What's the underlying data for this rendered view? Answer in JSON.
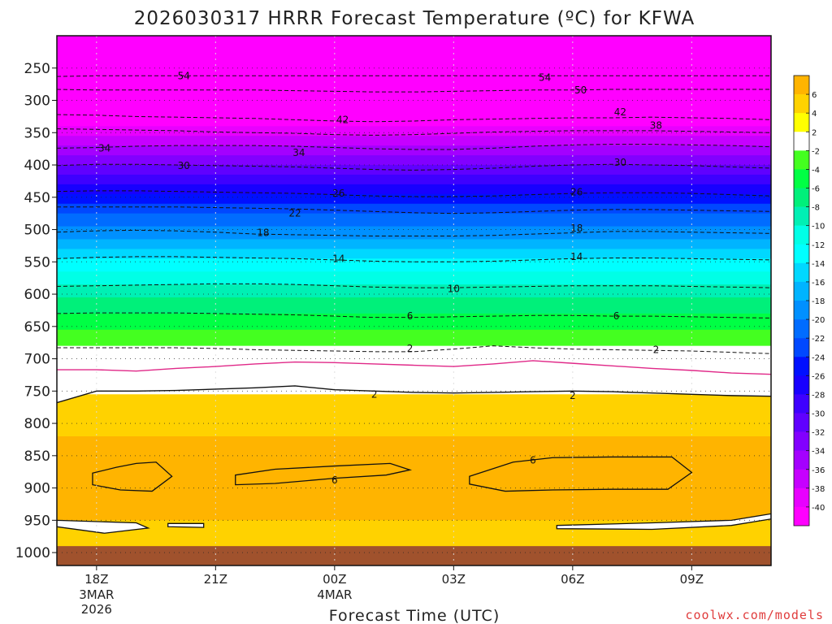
{
  "chart_data": {
    "type": "heatmap",
    "title": "2026030317 HRRR Forecast Temperature (ºC) for KFWA",
    "xlabel": "Forecast Time (UTC)",
    "ylabel": "",
    "credit": "coolwx.com/models",
    "x_range_hours": [
      -1,
      17
    ],
    "y_range_hpa": [
      1020,
      200
    ],
    "x_ticks": [
      {
        "hour": 0,
        "label": "18Z",
        "sub": [
          "3MAR",
          "2026"
        ]
      },
      {
        "hour": 3,
        "label": "21Z",
        "sub": []
      },
      {
        "hour": 6,
        "label": "00Z",
        "sub": [
          "4MAR"
        ]
      },
      {
        "hour": 9,
        "label": "03Z",
        "sub": []
      },
      {
        "hour": 12,
        "label": "06Z",
        "sub": []
      },
      {
        "hour": 15,
        "label": "09Z",
        "sub": []
      }
    ],
    "y_ticks": [
      250,
      300,
      350,
      400,
      450,
      500,
      550,
      600,
      650,
      700,
      750,
      800,
      850,
      900,
      950,
      1000
    ],
    "below_ground_hpa": 990,
    "temperature_bands_by_pressure": [
      {
        "top_hpa": 200,
        "bottom_hpa": 340,
        "temp_c": -50
      },
      {
        "top_hpa": 340,
        "bottom_hpa": 355,
        "temp_c": -39
      },
      {
        "top_hpa": 355,
        "bottom_hpa": 370,
        "temp_c": -37
      },
      {
        "top_hpa": 370,
        "bottom_hpa": 385,
        "temp_c": -35
      },
      {
        "top_hpa": 385,
        "bottom_hpa": 400,
        "temp_c": -33
      },
      {
        "top_hpa": 400,
        "bottom_hpa": 415,
        "temp_c": -31
      },
      {
        "top_hpa": 415,
        "bottom_hpa": 430,
        "temp_c": -29
      },
      {
        "top_hpa": 430,
        "bottom_hpa": 445,
        "temp_c": -27
      },
      {
        "top_hpa": 445,
        "bottom_hpa": 460,
        "temp_c": -25
      },
      {
        "top_hpa": 460,
        "bottom_hpa": 475,
        "temp_c": -23
      },
      {
        "top_hpa": 475,
        "bottom_hpa": 495,
        "temp_c": -21
      },
      {
        "top_hpa": 495,
        "bottom_hpa": 515,
        "temp_c": -19
      },
      {
        "top_hpa": 515,
        "bottom_hpa": 530,
        "temp_c": -17
      },
      {
        "top_hpa": 530,
        "bottom_hpa": 545,
        "temp_c": -15
      },
      {
        "top_hpa": 545,
        "bottom_hpa": 565,
        "temp_c": -13
      },
      {
        "top_hpa": 565,
        "bottom_hpa": 585,
        "temp_c": -11
      },
      {
        "top_hpa": 585,
        "bottom_hpa": 605,
        "temp_c": -9
      },
      {
        "top_hpa": 605,
        "bottom_hpa": 630,
        "temp_c": -7
      },
      {
        "top_hpa": 630,
        "bottom_hpa": 655,
        "temp_c": -5
      },
      {
        "top_hpa": 655,
        "bottom_hpa": 680,
        "temp_c": -3
      },
      {
        "top_hpa": 680,
        "bottom_hpa": 755,
        "temp_c": 0
      },
      {
        "top_hpa": 755,
        "bottom_hpa": 820,
        "temp_c": 3
      },
      {
        "top_hpa": 820,
        "bottom_hpa": 950,
        "temp_c": 5
      },
      {
        "top_hpa": 950,
        "bottom_hpa": 990,
        "temp_c": 3
      }
    ],
    "contours": [
      {
        "value": -54,
        "label": "54",
        "style": "dashed",
        "hpa": [
          263,
          262,
          262,
          262,
          262,
          262,
          262,
          262,
          262,
          262,
          262,
          262,
          262,
          262,
          262,
          262,
          262,
          262,
          262
        ]
      },
      {
        "value": -50,
        "label": "50",
        "style": "dashed",
        "hpa": [
          283,
          284,
          284,
          284,
          284,
          284,
          285,
          286,
          287,
          287,
          286,
          285,
          284,
          284,
          283,
          283,
          283,
          283,
          283
        ]
      },
      {
        "value": -42,
        "label": "42",
        "style": "dashed",
        "hpa": [
          322,
          323,
          325,
          326,
          327,
          328,
          330,
          332,
          333,
          332,
          330,
          329,
          328,
          327,
          327,
          326,
          327,
          328,
          330
        ]
      },
      {
        "value": -38,
        "label": "38",
        "style": "dashed",
        "hpa": [
          344,
          345,
          346,
          347,
          349,
          350,
          351,
          353,
          354,
          353,
          351,
          349,
          348,
          347,
          347,
          347,
          348,
          349,
          350
        ]
      },
      {
        "value": -34,
        "label": "34",
        "style": "dashed",
        "hpa": [
          374,
          373,
          371,
          370,
          370,
          370,
          371,
          373,
          375,
          376,
          376,
          374,
          371,
          369,
          368,
          368,
          369,
          370,
          372
        ]
      },
      {
        "value": -30,
        "label": "30",
        "style": "dashed",
        "hpa": [
          401,
          399,
          399,
          400,
          401,
          402,
          403,
          405,
          407,
          408,
          407,
          405,
          402,
          400,
          399,
          400,
          401,
          403,
          405
        ]
      },
      {
        "value": -26,
        "label": "26",
        "style": "dashed",
        "hpa": [
          441,
          440,
          440,
          441,
          442,
          443,
          444,
          446,
          448,
          449,
          449,
          448,
          446,
          444,
          443,
          443,
          444,
          446,
          448
        ]
      },
      {
        "value": -22,
        "label": "22",
        "style": "dashed",
        "hpa": [
          465,
          465,
          465,
          465,
          466,
          467,
          468,
          470,
          472,
          474,
          475,
          474,
          472,
          470,
          469,
          469,
          470,
          471,
          472
        ]
      },
      {
        "value": -18,
        "label": "18",
        "style": "dashed",
        "hpa": [
          504,
          502,
          501,
          502,
          504,
          507,
          508,
          509,
          510,
          510,
          510,
          509,
          507,
          505,
          503,
          503,
          504,
          505,
          506
        ]
      },
      {
        "value": -14,
        "label": "14",
        "style": "dashed",
        "hpa": [
          545,
          543,
          542,
          542,
          543,
          544,
          545,
          547,
          549,
          550,
          550,
          549,
          547,
          545,
          544,
          544,
          545,
          546,
          547
        ]
      },
      {
        "value": -10,
        "label": "10",
        "style": "dashed",
        "hpa": [
          588,
          587,
          586,
          585,
          584,
          584,
          585,
          587,
          589,
          590,
          590,
          589,
          588,
          587,
          587,
          587,
          588,
          589,
          590
        ]
      },
      {
        "value": -6,
        "label": "6",
        "style": "dashed",
        "hpa": [
          630,
          629,
          629,
          629,
          630,
          631,
          632,
          634,
          636,
          636,
          635,
          634,
          633,
          633,
          634,
          634,
          635,
          636,
          637
        ]
      },
      {
        "value": -2,
        "label": "2",
        "style": "dashed",
        "hpa": [
          683,
          683,
          683,
          683,
          684,
          686,
          687,
          688,
          689,
          689,
          685,
          680,
          683,
          685,
          686,
          687,
          688,
          690,
          692
        ]
      },
      {
        "value": 0,
        "label": "",
        "style": "magenta",
        "hpa": [
          717,
          717,
          719,
          715,
          712,
          708,
          705,
          706,
          708,
          710,
          712,
          708,
          703,
          707,
          711,
          715,
          718,
          722,
          724
        ]
      },
      {
        "value": 2,
        "label": "2",
        "style": "solid",
        "hpa": [
          768,
          750,
          750,
          749,
          747,
          745,
          742,
          748,
          750,
          752,
          753,
          752,
          751,
          750,
          751,
          753,
          755,
          757,
          758
        ]
      }
    ],
    "contour_labels": [
      {
        "text": "54",
        "hour": 2.2,
        "hpa": 262
      },
      {
        "text": "54",
        "hour": 11.3,
        "hpa": 265
      },
      {
        "text": "50",
        "hour": 12.2,
        "hpa": 284
      },
      {
        "text": "42",
        "hour": 6.2,
        "hpa": 330
      },
      {
        "text": "42",
        "hour": 13.2,
        "hpa": 318
      },
      {
        "text": "38",
        "hour": 14.1,
        "hpa": 339
      },
      {
        "text": "34",
        "hour": 0.2,
        "hpa": 374
      },
      {
        "text": "34",
        "hour": 5.1,
        "hpa": 381
      },
      {
        "text": "30",
        "hour": 2.2,
        "hpa": 401
      },
      {
        "text": "30",
        "hour": 13.2,
        "hpa": 396
      },
      {
        "text": "26",
        "hour": 6.1,
        "hpa": 444
      },
      {
        "text": "26",
        "hour": 12.1,
        "hpa": 442
      },
      {
        "text": "22",
        "hour": 5.0,
        "hpa": 475
      },
      {
        "text": "18",
        "hour": 4.2,
        "hpa": 505
      },
      {
        "text": "18",
        "hour": 12.1,
        "hpa": 498
      },
      {
        "text": "14",
        "hour": 6.1,
        "hpa": 545
      },
      {
        "text": "14",
        "hour": 12.1,
        "hpa": 542
      },
      {
        "text": "10",
        "hour": 9.0,
        "hpa": 592
      },
      {
        "text": "6",
        "hour": 7.9,
        "hpa": 634
      },
      {
        "text": "6",
        "hour": 13.1,
        "hpa": 634
      },
      {
        "text": "2",
        "hour": 7.9,
        "hpa": 684
      },
      {
        "text": "2",
        "hour": 14.1,
        "hpa": 686
      },
      {
        "text": "2",
        "hour": 7.0,
        "hpa": 755
      },
      {
        "text": "2",
        "hour": 12.0,
        "hpa": 757
      },
      {
        "text": "6",
        "hour": 6.0,
        "hpa": 888
      },
      {
        "text": "6",
        "hour": 11.0,
        "hpa": 857
      }
    ],
    "warm_cells_6c": [
      {
        "hours": [
          -0.1,
          0.5,
          1.0,
          1.5,
          1.9,
          1.4,
          0.6,
          -0.1
        ],
        "hpa": [
          877,
          868,
          862,
          860,
          882,
          905,
          903,
          895
        ]
      },
      {
        "hours": [
          3.5,
          4.5,
          6.0,
          7.4,
          7.9,
          7.3,
          6.0,
          4.5,
          3.5
        ],
        "hpa": [
          880,
          871,
          866,
          862,
          872,
          880,
          885,
          893,
          895
        ]
      },
      {
        "hours": [
          9.4,
          10.5,
          11.5,
          13.0,
          14.5,
          15.0,
          14.4,
          13.0,
          11.5,
          10.3,
          9.4
        ],
        "hpa": [
          882,
          860,
          853,
          852,
          852,
          876,
          902,
          902,
          903,
          905,
          894
        ]
      }
    ],
    "cool_pockets_2c": [
      {
        "hours": [
          -1.0,
          1.0,
          1.3,
          0.2,
          -1.0
        ],
        "hpa": [
          950,
          954,
          962,
          970,
          960
        ]
      },
      {
        "hours": [
          1.8,
          2.7,
          2.7,
          1.8
        ],
        "hpa": [
          955,
          955,
          961,
          960
        ]
      },
      {
        "hours": [
          11.6,
          14.0,
          16.0,
          17.0,
          17.0,
          16.0,
          14.0,
          11.6
        ],
        "hpa": [
          958,
          954,
          950,
          940,
          948,
          958,
          964,
          963
        ]
      }
    ],
    "legend": {
      "position": "right",
      "labels": [
        "6",
        "4",
        "2",
        "-2",
        "-4",
        "-6",
        "-8",
        "-10",
        "-12",
        "-14",
        "-16",
        "-18",
        "-20",
        "-22",
        "-24",
        "-26",
        "-28",
        "-30",
        "-32",
        "-34",
        "-36",
        "-38",
        "-40"
      ],
      "colors": [
        "#ffb400",
        "#ffd200",
        "#ffff00",
        "#ffffff",
        "#44ff20",
        "#00ff44",
        "#00f07a",
        "#00f0b4",
        "#00ffe6",
        "#00ffff",
        "#00d8ff",
        "#00b4ff",
        "#0090ff",
        "#006cff",
        "#0048ff",
        "#0010ff",
        "#1800ff",
        "#3e00ff",
        "#6000ff",
        "#8200ff",
        "#a400ff",
        "#c600ff",
        "#e800ff",
        "#ff00ff"
      ]
    },
    "ground_color": "#a0522d",
    "zero_line_color": "#e02888",
    "grid": true
  }
}
